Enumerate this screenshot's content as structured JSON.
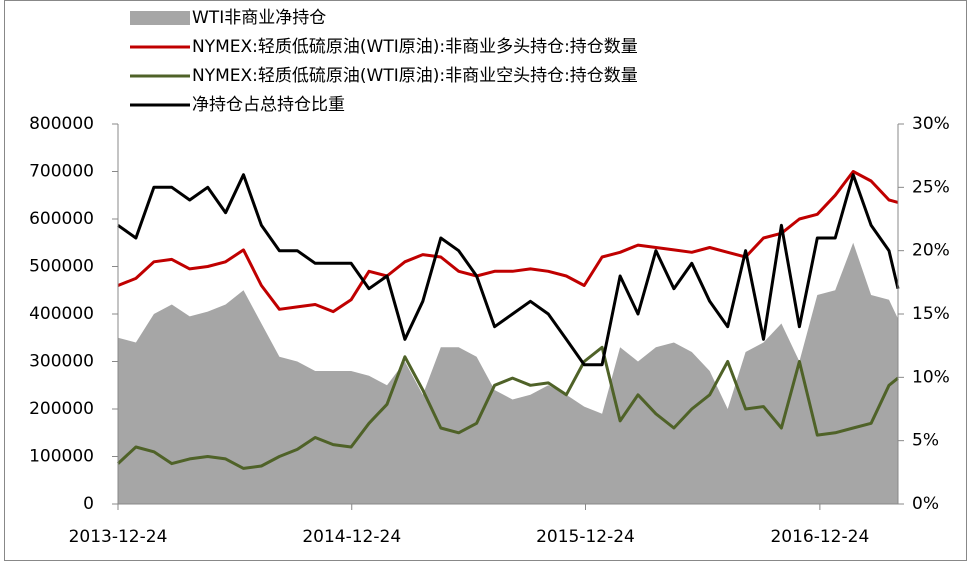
{
  "chart_data": {
    "type": "line",
    "x": [
      "2013-12-24",
      "2014-01-21",
      "2014-02-18",
      "2014-03-18",
      "2014-04-15",
      "2014-05-13",
      "2014-06-10",
      "2014-07-08",
      "2014-08-05",
      "2014-09-02",
      "2014-09-30",
      "2014-10-28",
      "2014-11-25",
      "2014-12-23",
      "2015-01-20",
      "2015-02-17",
      "2015-03-17",
      "2015-04-14",
      "2015-05-12",
      "2015-06-09",
      "2015-07-07",
      "2015-08-04",
      "2015-09-01",
      "2015-09-29",
      "2015-10-27",
      "2015-11-24",
      "2015-12-22",
      "2016-01-19",
      "2016-02-16",
      "2016-03-15",
      "2016-04-12",
      "2016-05-10",
      "2016-06-07",
      "2016-07-05",
      "2016-08-02",
      "2016-08-30",
      "2016-09-27",
      "2016-10-25",
      "2016-11-22",
      "2016-12-20",
      "2017-01-17",
      "2017-02-14",
      "2017-03-14",
      "2017-04-11",
      "2017-04-25"
    ],
    "series": [
      {
        "name": "WTI非商业净持仓",
        "kind": "area",
        "color": "#a6a6a6",
        "values": [
          350000,
          340000,
          400000,
          420000,
          395000,
          405000,
          420000,
          450000,
          380000,
          310000,
          300000,
          280000,
          280000,
          280000,
          270000,
          250000,
          300000,
          230000,
          330000,
          330000,
          310000,
          240000,
          220000,
          230000,
          250000,
          230000,
          205000,
          190000,
          330000,
          300000,
          330000,
          340000,
          320000,
          280000,
          200000,
          320000,
          340000,
          380000,
          300000,
          440000,
          450000,
          550000,
          440000,
          430000,
          390000
        ]
      },
      {
        "name": "NYMEX:轻质低硫原油(WTI原油):非商业多头持仓:持仓数量",
        "kind": "line",
        "color": "#c00000",
        "values": [
          460000,
          475000,
          510000,
          515000,
          495000,
          500000,
          510000,
          535000,
          460000,
          410000,
          415000,
          420000,
          405000,
          430000,
          490000,
          480000,
          510000,
          525000,
          520000,
          490000,
          480000,
          490000,
          490000,
          495000,
          490000,
          480000,
          460000,
          520000,
          530000,
          545000,
          540000,
          535000,
          530000,
          540000,
          530000,
          520000,
          560000,
          570000,
          600000,
          610000,
          650000,
          700000,
          680000,
          640000,
          635000
        ]
      },
      {
        "name": "NYMEX:轻质低硫原油(WTI原油):非商业空头持仓:持仓数量",
        "kind": "line",
        "color": "#4f6228",
        "values": [
          85000,
          120000,
          110000,
          85000,
          95000,
          100000,
          95000,
          75000,
          80000,
          100000,
          115000,
          140000,
          125000,
          120000,
          170000,
          210000,
          310000,
          240000,
          160000,
          150000,
          170000,
          250000,
          265000,
          250000,
          255000,
          230000,
          300000,
          330000,
          175000,
          230000,
          190000,
          160000,
          200000,
          230000,
          300000,
          200000,
          205000,
          160000,
          300000,
          145000,
          150000,
          160000,
          170000,
          250000,
          265000
        ]
      },
      {
        "name": "净持仓占总持仓比重",
        "kind": "line",
        "axis": "y2",
        "color": "#000000",
        "values": [
          22,
          21,
          25,
          25,
          24,
          25,
          23,
          26,
          22,
          20,
          20,
          19,
          19,
          19,
          17,
          18,
          13,
          16,
          21,
          20,
          18,
          14,
          15,
          16,
          15,
          13,
          11,
          11,
          18,
          15,
          20,
          17,
          19,
          16,
          14,
          20,
          13,
          22,
          14,
          21,
          21,
          26,
          22,
          20,
          17
        ]
      }
    ],
    "xlim": [
      "2013-12-24",
      "2017-04-25"
    ],
    "xticks": [
      "2013-12-24",
      "2014-12-24",
      "2015-12-24",
      "2016-12-24"
    ],
    "ylim": [
      0,
      800000
    ],
    "yticks": [
      0,
      100000,
      200000,
      300000,
      400000,
      500000,
      600000,
      700000,
      800000
    ],
    "y2lim": [
      0,
      30
    ],
    "y2ticks": [
      {
        "value": 0,
        "label": "0%"
      },
      {
        "value": 5,
        "label": "5%"
      },
      {
        "value": 10,
        "label": "10%"
      },
      {
        "value": 15,
        "label": "15%"
      },
      {
        "value": 20,
        "label": "20%"
      },
      {
        "value": 25,
        "label": "25%"
      },
      {
        "value": 30,
        "label": "30%"
      }
    ]
  }
}
